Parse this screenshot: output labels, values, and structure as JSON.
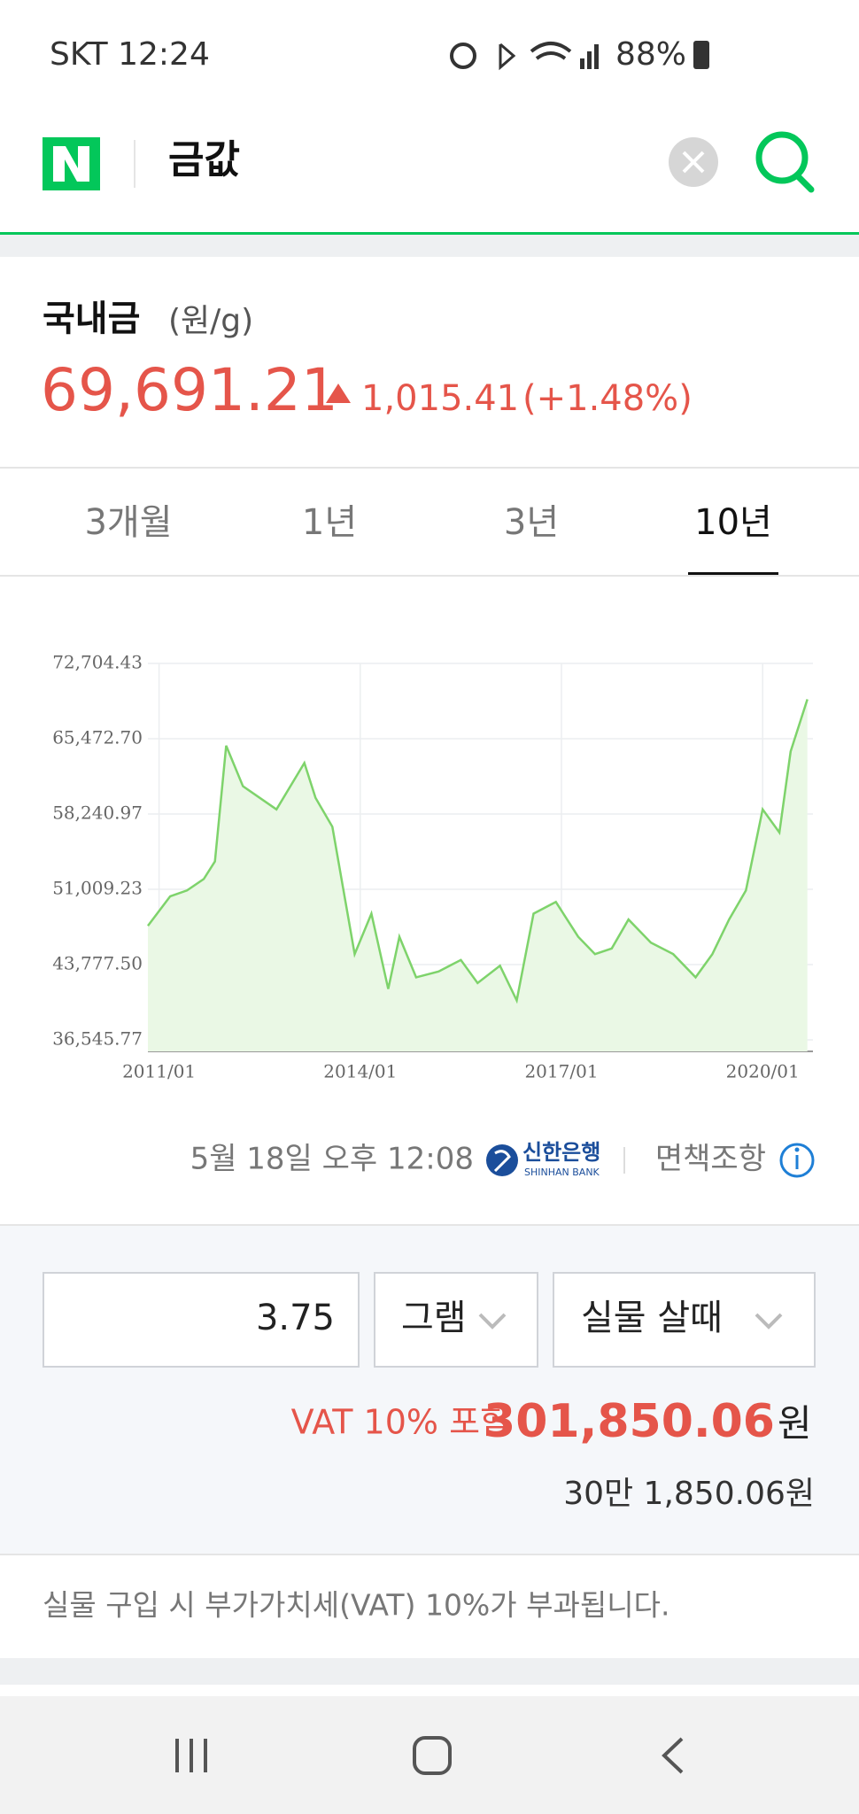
{
  "status_bar": {
    "carrier_time": "SKT 12:24",
    "battery": "88%"
  },
  "search": {
    "query": "금값"
  },
  "quote": {
    "name": "국내금",
    "unit": "(원/g)",
    "price": "69,691.21",
    "change": "1,015.41",
    "change_percent": "(+1.48%)"
  },
  "tabs": [
    "3개월",
    "1년",
    "3년",
    "10년"
  ],
  "selected_tab": 3,
  "chart_data": {
    "type": "line",
    "x": [
      "2010/11",
      "2011/03",
      "2011/06",
      "2011/09",
      "2011/11",
      "2012/01",
      "2012/04",
      "2012/07",
      "2012/10",
      "2013/03",
      "2013/05",
      "2013/08",
      "2013/10",
      "2013/12",
      "2014/03",
      "2014/06",
      "2014/08",
      "2014/11",
      "2015/03",
      "2015/07",
      "2015/10",
      "2016/02",
      "2016/05",
      "2016/08",
      "2016/12",
      "2017/04",
      "2017/07",
      "2017/10",
      "2018/01",
      "2018/05",
      "2018/09",
      "2019/01",
      "2019/04",
      "2019/07",
      "2019/10",
      "2020/01",
      "2020/04",
      "2020/06",
      "2020/09"
    ],
    "series": [
      {
        "color": "#7ed36b",
        "values": [
          47500,
          50340,
          50900,
          52000,
          53680,
          64800,
          60910,
          59800,
          58680,
          63140,
          59800,
          57020,
          50900,
          44780,
          48670,
          41440,
          46450,
          42550,
          43110,
          44220,
          42000,
          43670,
          40330,
          48670,
          49790,
          46450,
          44780,
          45330,
          48110,
          45890,
          44780,
          42550,
          44780,
          48110,
          50900,
          58680,
          56460,
          64250,
          69260
        ]
      }
    ],
    "xlim": [
      "2010/11",
      "2020/10"
    ],
    "xticks": [
      "2011/01",
      "2014/01",
      "2017/01",
      "2020/01"
    ],
    "ylim": [
      36545.77,
      72704.43
    ],
    "yticks": [
      {
        "value": 36545.77,
        "label": "36,545.77"
      },
      {
        "value": 43777.5,
        "label": "43,777.50"
      },
      {
        "value": 51009.23,
        "label": "51,009.23"
      },
      {
        "value": 58240.97,
        "label": "58,240.97"
      },
      {
        "value": 65472.7,
        "label": "65,472.70"
      },
      {
        "value": 72704.43,
        "label": "72,704.43"
      }
    ],
    "grid": true,
    "fill": "#eaf8e5"
  },
  "source": {
    "timestamp": "5월 18일 오후 12:08",
    "bank": "신한은행",
    "bank_en": "SHINHAN BANK",
    "disclaimer": "면책조항"
  },
  "calculator": {
    "amount": "3.75",
    "unit": "그램",
    "mode": "실물 살때",
    "vat_note": "VAT 10% 포함",
    "result": "301,850.06",
    "currency": "원",
    "result_korean": "30만 1,850.06원"
  },
  "note": "실물 구입 시 부가가치세(VAT) 10%가 부과됩니다."
}
